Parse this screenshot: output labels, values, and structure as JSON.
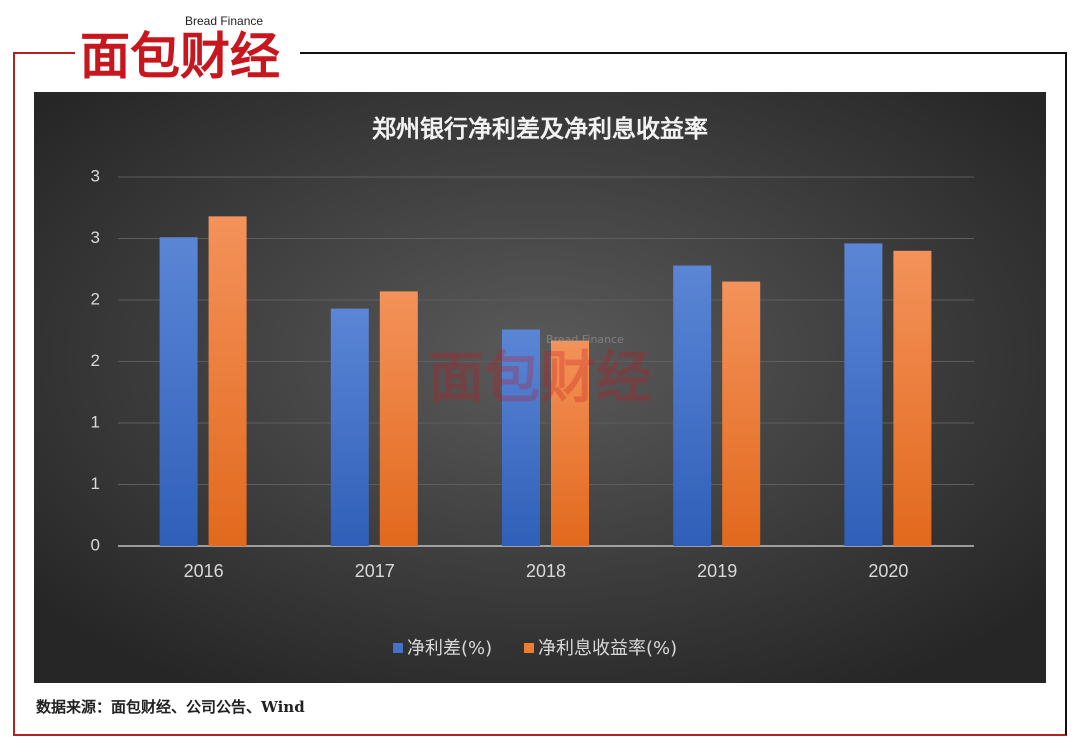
{
  "header": {
    "logo": "面包财经",
    "logo_en": "Bread Finance"
  },
  "chart_data": {
    "type": "bar",
    "title": "郑州银行净利差及净利息收益率",
    "categories": [
      "2016",
      "2017",
      "2018",
      "2019",
      "2020"
    ],
    "series": [
      {
        "name": "净利差(%)",
        "color": "#4472c4",
        "values": [
          2.51,
          1.93,
          1.76,
          2.28,
          2.46
        ]
      },
      {
        "name": "净利息收益率(%)",
        "color": "#ed7d31",
        "values": [
          2.68,
          2.07,
          1.67,
          2.15,
          2.4
        ]
      }
    ],
    "ylim": [
      0,
      3
    ],
    "yticks": [
      0,
      {
        "value": 0.5,
        "label": "1"
      },
      {
        "value": 1,
        "label": "1"
      },
      {
        "value": 1.5,
        "label": "2"
      },
      {
        "value": 2,
        "label": "2"
      },
      {
        "value": 2.5,
        "label": "3"
      },
      {
        "value": 3,
        "label": "3"
      }
    ],
    "grid": true,
    "legend": "bottom"
  },
  "footer": {
    "source": "数据来源：面包财经、公司公告、Wind"
  }
}
